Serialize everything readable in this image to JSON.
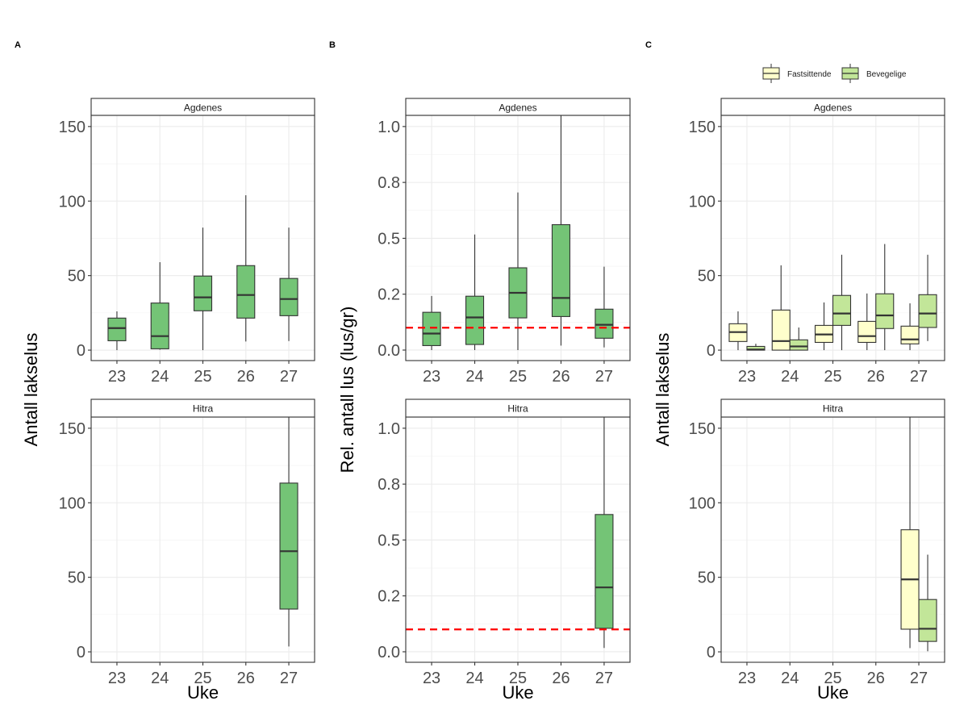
{
  "chart_data": [
    {
      "type": "boxplot",
      "panel_tag": "A",
      "ylabel": "Antall lakselus",
      "xlabel": "Uke",
      "ylim": [
        -7,
        157.5
      ],
      "yticks": [
        0,
        50,
        100,
        150
      ],
      "ytick_labels": [
        "0",
        "50",
        "100",
        "150"
      ],
      "categories": [
        "23",
        "24",
        "25",
        "26",
        "27"
      ],
      "grid": true,
      "fill": "#74C476",
      "facets": [
        {
          "name": "Agdenes",
          "series": [
            {
              "name": "",
              "boxes": [
                {
                  "x": "23",
                  "low": 0,
                  "q1": 6.3,
                  "median": 14.8,
                  "q3": 21.5,
                  "high": 26
                },
                {
                  "x": "24",
                  "low": 0.3,
                  "q1": 0.9,
                  "median": 9.4,
                  "q3": 31.6,
                  "high": 59
                },
                {
                  "x": "25",
                  "low": 0,
                  "q1": 26.4,
                  "median": 35.4,
                  "q3": 49.7,
                  "high": 82.2
                },
                {
                  "x": "26",
                  "low": 5.8,
                  "q1": 21.5,
                  "median": 37,
                  "q3": 56.7,
                  "high": 103.9
                },
                {
                  "x": "27",
                  "low": 6.1,
                  "q1": 23.1,
                  "median": 34.3,
                  "q3": 48.1,
                  "high": 82.2
                }
              ]
            }
          ]
        },
        {
          "name": "Hitra",
          "series": [
            {
              "name": "",
              "boxes": [
                {
                  "x": "27",
                  "low": 3.6,
                  "q1": 28.7,
                  "median": 67.5,
                  "q3": 113.2,
                  "high": 170
                }
              ]
            }
          ]
        }
      ]
    },
    {
      "type": "boxplot",
      "panel_tag": "B",
      "ylabel": "Rel. antall lus (lus/gr)",
      "xlabel": "Uke",
      "ylim": [
        -0.047,
        1.05
      ],
      "yticks": [
        0,
        0.25,
        0.5,
        0.75,
        1.0
      ],
      "ytick_labels": [
        "0.0",
        "0.2",
        "0.5",
        "0.8",
        "1.0"
      ],
      "categories": [
        "23",
        "24",
        "25",
        "26",
        "27"
      ],
      "grid": true,
      "fill": "#74C476",
      "reference_line": {
        "y": 0.1,
        "color": "#FF0000",
        "style": "dashed"
      },
      "facets": [
        {
          "name": "Agdenes",
          "series": [
            {
              "name": "",
              "boxes": [
                {
                  "x": "23",
                  "low": 0,
                  "q1": 0.02,
                  "median": 0.074,
                  "q3": 0.169,
                  "high": 0.242
                },
                {
                  "x": "24",
                  "low": 0,
                  "q1": 0.025,
                  "median": 0.146,
                  "q3": 0.241,
                  "high": 0.517
                },
                {
                  "x": "25",
                  "low": 0,
                  "q1": 0.144,
                  "median": 0.256,
                  "q3": 0.368,
                  "high": 0.705
                },
                {
                  "x": "26",
                  "low": 0.02,
                  "q1": 0.15,
                  "median": 0.233,
                  "q3": 0.561,
                  "high": 1.2
                },
                {
                  "x": "27",
                  "low": 0.012,
                  "q1": 0.053,
                  "median": 0.113,
                  "q3": 0.183,
                  "high": 0.373
                }
              ]
            }
          ]
        },
        {
          "name": "Hitra",
          "series": [
            {
              "name": "",
              "boxes": [
                {
                  "x": "27",
                  "low": 0.017,
                  "q1": 0.105,
                  "median": 0.288,
                  "q3": 0.614,
                  "high": 1.2
                }
              ]
            }
          ]
        }
      ]
    },
    {
      "type": "boxplot",
      "panel_tag": "C",
      "ylabel": "Antall lakselus",
      "xlabel": "Uke",
      "ylim": [
        -7,
        157.5
      ],
      "yticks": [
        0,
        50,
        100,
        150
      ],
      "ytick_labels": [
        "0",
        "50",
        "100",
        "150"
      ],
      "categories": [
        "23",
        "24",
        "25",
        "26",
        "27"
      ],
      "grid": true,
      "legend": {
        "position": "top-right",
        "entries": [
          {
            "label": "Fastsittende",
            "color": "#FFFFCC"
          },
          {
            "label": "Bevegelige",
            "color": "#C2E699"
          }
        ]
      },
      "facets": [
        {
          "name": "Agdenes",
          "series": [
            {
              "name": "Fastsittende",
              "color": "#FFFFCC",
              "boxes": [
                {
                  "x": "23",
                  "low": 0,
                  "q1": 5.8,
                  "median": 12.1,
                  "q3": 17.7,
                  "high": 26
                },
                {
                  "x": "24",
                  "low": 0,
                  "q1": 0,
                  "median": 6.1,
                  "q3": 26.9,
                  "high": 56.9
                },
                {
                  "x": "25",
                  "low": 0,
                  "q1": 5.2,
                  "median": 10.5,
                  "q3": 16.6,
                  "high": 32
                },
                {
                  "x": "26",
                  "low": 0,
                  "q1": 5.2,
                  "median": 9.4,
                  "q3": 19.3,
                  "high": 38
                },
                {
                  "x": "27",
                  "low": 0,
                  "q1": 4.2,
                  "median": 7.2,
                  "q3": 16.1,
                  "high": 31.4
                }
              ]
            },
            {
              "name": "Bevegelige",
              "color": "#C2E699",
              "boxes": [
                {
                  "x": "23",
                  "low": 0,
                  "q1": 0,
                  "median": 0.4,
                  "q3": 2.5,
                  "high": 4.3
                },
                {
                  "x": "24",
                  "low": 0,
                  "q1": 0,
                  "median": 2.5,
                  "q3": 6.9,
                  "high": 15.2
                },
                {
                  "x": "25",
                  "low": 0,
                  "q1": 16.6,
                  "median": 24.6,
                  "q3": 36.7,
                  "high": 64
                },
                {
                  "x": "26",
                  "low": 0,
                  "q1": 14.5,
                  "median": 23.3,
                  "q3": 37.8,
                  "high": 71.2
                },
                {
                  "x": "27",
                  "low": 6.1,
                  "q1": 15.2,
                  "median": 24.6,
                  "q3": 37.2,
                  "high": 64
                }
              ]
            }
          ]
        },
        {
          "name": "Hitra",
          "series": [
            {
              "name": "Fastsittende",
              "color": "#FFFFCC",
              "boxes": [
                {
                  "x": "27",
                  "low": 2.5,
                  "q1": 15.2,
                  "median": 48.6,
                  "q3": 81.9,
                  "high": 170
                }
              ]
            },
            {
              "name": "Bevegelige",
              "color": "#C2E699",
              "boxes": [
                {
                  "x": "27",
                  "low": 0.4,
                  "q1": 7,
                  "median": 15.5,
                  "q3": 35.1,
                  "high": 65.2
                }
              ]
            }
          ]
        }
      ]
    }
  ]
}
